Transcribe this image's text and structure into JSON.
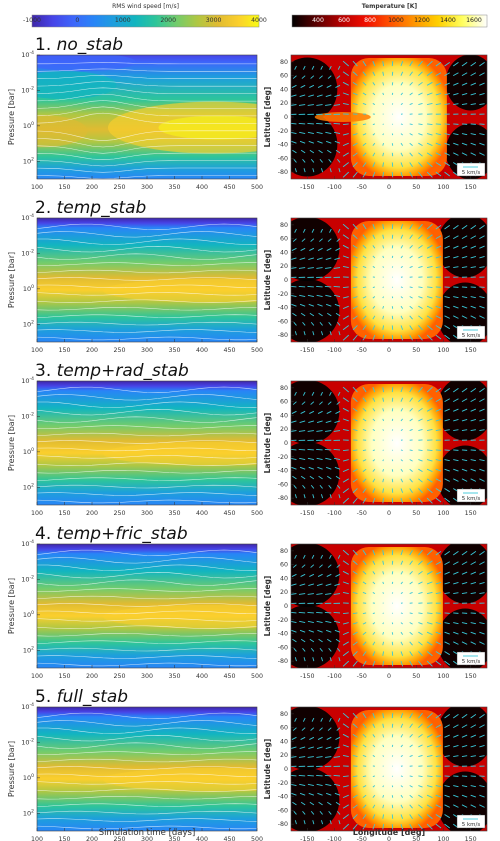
{
  "chart_data": {
    "type": "heatmap",
    "colorbars": [
      {
        "label": "RMS wind speed [m/s]",
        "min": -1000,
        "max": 4000,
        "ticks": [
          "-1000",
          "0",
          "1000",
          "2000",
          "3000",
          "4000"
        ],
        "colormap": "parula"
      },
      {
        "label": "Temperature [K]",
        "min": 200,
        "max": 1700,
        "ticks": [
          "400",
          "600",
          "800",
          "1000",
          "1200",
          "1400",
          "1600"
        ],
        "tick_values": [
          400,
          600,
          800,
          1000,
          1200,
          1400,
          1600
        ],
        "colormap": "hot"
      }
    ],
    "left_panels": {
      "ylabel": "Pressure [bar]",
      "xlabel": "Simulation time [days]",
      "xlim": [
        100,
        500
      ],
      "xticks": [
        "100",
        "150",
        "200",
        "250",
        "300",
        "350",
        "400",
        "450",
        "500"
      ],
      "ylim_log10": [
        -4,
        3
      ],
      "yticks": [
        {
          "base": "10",
          "exp": "-4",
          "log": -4
        },
        {
          "base": "10",
          "exp": "-2",
          "log": -2
        },
        {
          "base": "10",
          "exp": "0",
          "log": 0
        },
        {
          "base": "10",
          "exp": "2",
          "log": 2
        }
      ]
    },
    "right_panels": {
      "ylabel": "Latitude [deg]",
      "xlabel": "Longitude [deg]",
      "xlim": [
        -180,
        180
      ],
      "ylim": [
        -90,
        90
      ],
      "xticks": [
        "-150",
        "-100",
        "-50",
        "0",
        "50",
        "100",
        "150"
      ],
      "yticks": [
        "80",
        "60",
        "40",
        "20",
        "0",
        "-20",
        "-40",
        "-60",
        "-80"
      ],
      "vector_scale_label": "5 km/s"
    },
    "panels": [
      {
        "title": "1. no_stab"
      },
      {
        "title": "2. temp_stab"
      },
      {
        "title": "3. temp+rad_stab"
      },
      {
        "title": "4. temp+fric_stab"
      },
      {
        "title": "5. full_stab"
      }
    ]
  }
}
